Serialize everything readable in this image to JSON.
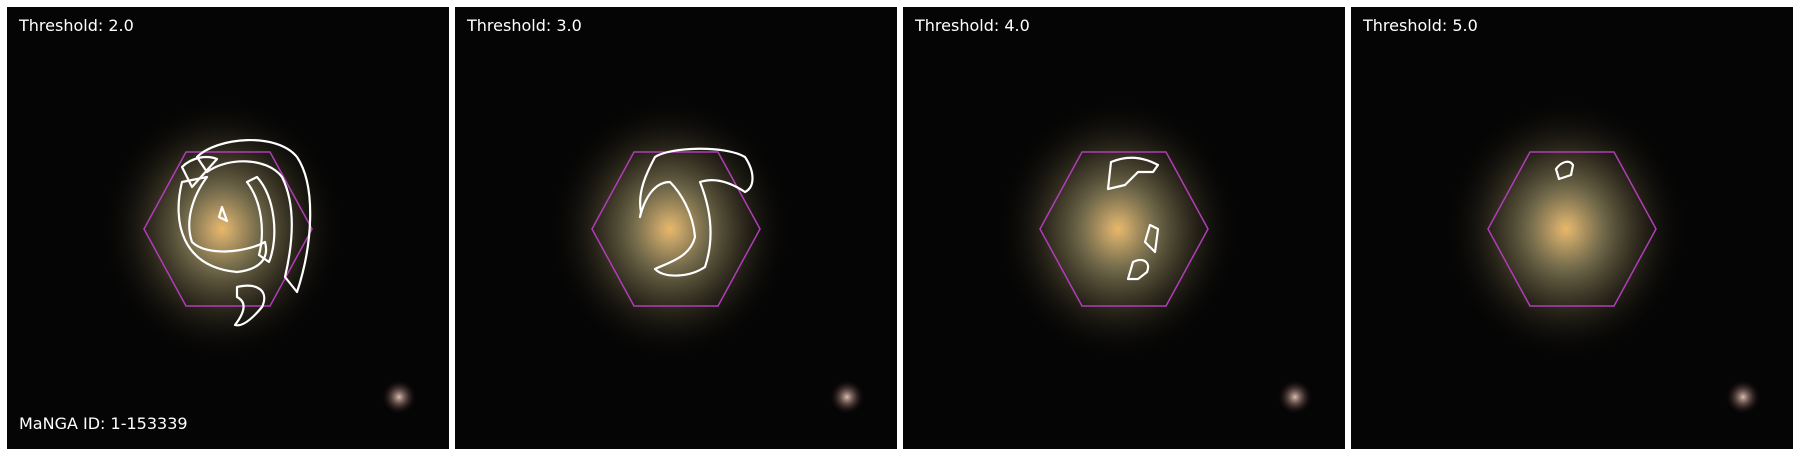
{
  "panels": [
    {
      "threshold_label": "Threshold: 2.0",
      "bottom_label": "MaNGA ID: 1-153339"
    },
    {
      "threshold_label": "Threshold: 3.0",
      "bottom_label": ""
    },
    {
      "threshold_label": "Threshold: 4.0",
      "bottom_label": ""
    },
    {
      "threshold_label": "Threshold: 5.0",
      "bottom_label": ""
    }
  ],
  "colors": {
    "background": "#000000",
    "hexagon": "#b23cb8",
    "contour": "#ffffff",
    "galaxy_core": "#e8b060",
    "galaxy_halo": "#7a6e4a"
  }
}
